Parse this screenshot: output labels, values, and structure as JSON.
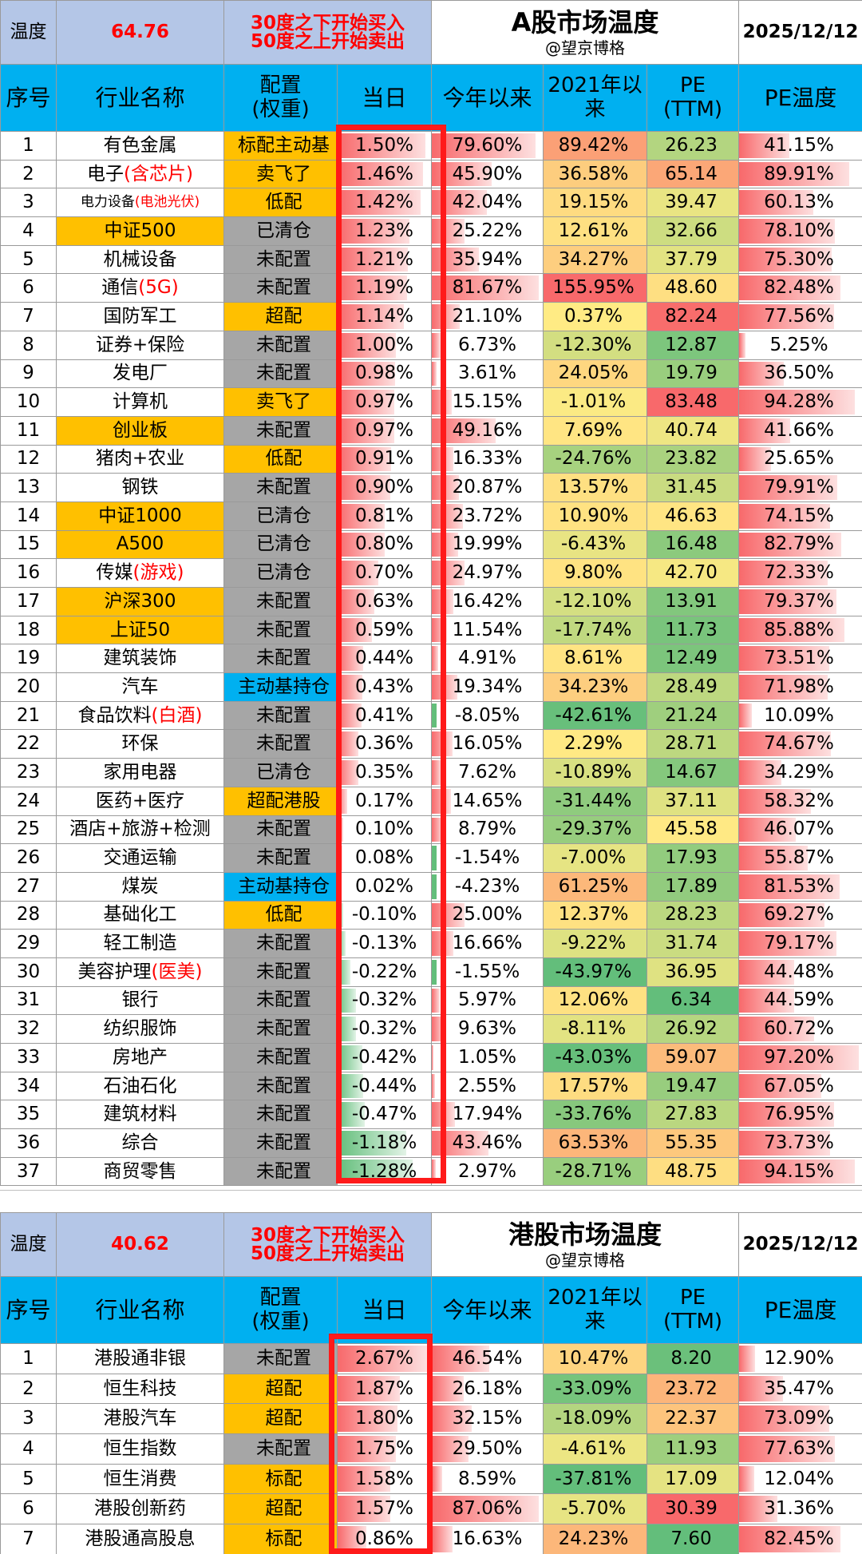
{
  "a_share": {
    "temp_label": "温度",
    "temp_value": "64.76",
    "rule_buy": "30度之下开始买入",
    "rule_sell": "50度之上开始卖出",
    "title": "A股市场温度",
    "subtitle": "@望京博格",
    "date": "2025/12/12",
    "columns": {
      "idx": "序号",
      "name": "行业名称",
      "config_l1": "配置",
      "config_l2": "(权重)",
      "day": "当日",
      "ytd": "今年以来",
      "since_l1": "2021年以",
      "since_l2": "来",
      "pe_l1": "PE",
      "pe_l2": "(TTM)",
      "pe_temp": "PE温度"
    },
    "rows": [
      {
        "idx": "1",
        "name": "有色金属",
        "cfg": "标配主动基",
        "day": "1.50%",
        "ytd": "79.60%",
        "since": "89.42%",
        "pe": "26.23",
        "pet": "41.15%"
      },
      {
        "idx": "2",
        "name": "电子",
        "name_red": "(含芯片)",
        "cfg": "卖飞了",
        "day": "1.46%",
        "ytd": "45.90%",
        "since": "36.58%",
        "pe": "65.14",
        "pet": "89.91%"
      },
      {
        "idx": "3",
        "name": "电力设备",
        "name_red": "(电池光伏)",
        "small": true,
        "cfg": "低配",
        "day": "1.42%",
        "ytd": "42.04%",
        "since": "19.15%",
        "pe": "39.47",
        "pet": "60.13%"
      },
      {
        "idx": "4",
        "name": "中证500",
        "cfg": "已清仓",
        "day": "1.23%",
        "ytd": "25.22%",
        "since": "12.61%",
        "pe": "32.66",
        "pet": "78.10%"
      },
      {
        "idx": "5",
        "name": "机械设备",
        "cfg": "未配置",
        "day": "1.21%",
        "ytd": "35.94%",
        "since": "34.27%",
        "pe": "37.79",
        "pet": "75.30%"
      },
      {
        "idx": "6",
        "name": "通信",
        "name_red": "(5G)",
        "cfg": "未配置",
        "day": "1.19%",
        "ytd": "81.67%",
        "since": "155.95%",
        "pe": "48.60",
        "pet": "82.48%"
      },
      {
        "idx": "7",
        "name": "国防军工",
        "cfg": "超配",
        "day": "1.14%",
        "ytd": "21.10%",
        "since": "0.37%",
        "pe": "82.24",
        "pet": "77.56%"
      },
      {
        "idx": "8",
        "name": "证券+保险",
        "cfg": "未配置",
        "day": "1.00%",
        "ytd": "6.73%",
        "since": "-12.30%",
        "pe": "12.87",
        "pet": "5.25%"
      },
      {
        "idx": "9",
        "name": "发电厂",
        "cfg": "未配置",
        "day": "0.98%",
        "ytd": "3.61%",
        "since": "24.05%",
        "pe": "19.79",
        "pet": "36.50%"
      },
      {
        "idx": "10",
        "name": "计算机",
        "cfg": "卖飞了",
        "day": "0.97%",
        "ytd": "15.15%",
        "since": "-1.01%",
        "pe": "83.48",
        "pet": "94.28%"
      },
      {
        "idx": "11",
        "name": "创业板",
        "cfg": "未配置",
        "day": "0.97%",
        "ytd": "49.16%",
        "since": "7.69%",
        "pe": "40.74",
        "pet": "41.66%"
      },
      {
        "idx": "12",
        "name": "猪肉+农业",
        "cfg": "低配",
        "day": "0.91%",
        "ytd": "16.33%",
        "since": "-24.76%",
        "pe": "23.82",
        "pet": "25.65%"
      },
      {
        "idx": "13",
        "name": "钢铁",
        "cfg": "未配置",
        "day": "0.90%",
        "ytd": "20.87%",
        "since": "13.57%",
        "pe": "31.45",
        "pet": "79.91%"
      },
      {
        "idx": "14",
        "name": "中证1000",
        "cfg": "已清仓",
        "day": "0.81%",
        "ytd": "23.72%",
        "since": "10.90%",
        "pe": "46.63",
        "pet": "74.15%"
      },
      {
        "idx": "15",
        "name": "A500",
        "cfg": "已清仓",
        "day": "0.80%",
        "ytd": "19.99%",
        "since": "-6.43%",
        "pe": "16.48",
        "pet": "82.79%"
      },
      {
        "idx": "16",
        "name": "传媒",
        "name_red": "(游戏)",
        "cfg": "已清仓",
        "day": "0.70%",
        "ytd": "24.97%",
        "since": "9.80%",
        "pe": "42.70",
        "pet": "72.33%"
      },
      {
        "idx": "17",
        "name": "沪深300",
        "cfg": "未配置",
        "day": "0.63%",
        "ytd": "16.42%",
        "since": "-12.10%",
        "pe": "13.91",
        "pet": "79.37%"
      },
      {
        "idx": "18",
        "name": "上证50",
        "cfg": "未配置",
        "day": "0.59%",
        "ytd": "11.54%",
        "since": "-17.74%",
        "pe": "11.73",
        "pet": "85.88%"
      },
      {
        "idx": "19",
        "name": "建筑装饰",
        "cfg": "未配置",
        "day": "0.44%",
        "ytd": "4.91%",
        "since": "8.61%",
        "pe": "12.49",
        "pet": "73.51%"
      },
      {
        "idx": "20",
        "name": "汽车",
        "cfg": "主动基持仓",
        "day": "0.43%",
        "ytd": "19.34%",
        "since": "34.23%",
        "pe": "28.49",
        "pet": "71.98%"
      },
      {
        "idx": "21",
        "name": "食品饮料",
        "name_red": "(白酒)",
        "cfg": "未配置",
        "day": "0.41%",
        "ytd": "-8.05%",
        "since": "-42.61%",
        "pe": "21.24",
        "pet": "10.09%"
      },
      {
        "idx": "22",
        "name": "环保",
        "cfg": "未配置",
        "day": "0.36%",
        "ytd": "16.05%",
        "since": "2.29%",
        "pe": "28.71",
        "pet": "74.67%"
      },
      {
        "idx": "23",
        "name": "家用电器",
        "cfg": "已清仓",
        "day": "0.35%",
        "ytd": "7.62%",
        "since": "-10.89%",
        "pe": "14.67",
        "pet": "34.29%"
      },
      {
        "idx": "24",
        "name": "医药+医疗",
        "cfg": "超配港股",
        "day": "0.17%",
        "ytd": "14.65%",
        "since": "-31.44%",
        "pe": "37.11",
        "pet": "58.32%"
      },
      {
        "idx": "25",
        "name": "酒店+旅游+检测",
        "cfg": "未配置",
        "day": "0.10%",
        "ytd": "8.79%",
        "since": "-29.37%",
        "pe": "45.58",
        "pet": "46.07%"
      },
      {
        "idx": "26",
        "name": "交通运输",
        "cfg": "未配置",
        "day": "0.08%",
        "ytd": "-1.54%",
        "since": "-7.00%",
        "pe": "17.93",
        "pet": "55.87%"
      },
      {
        "idx": "27",
        "name": "煤炭",
        "cfg": "主动基持仓",
        "day": "0.02%",
        "ytd": "-4.23%",
        "since": "61.25%",
        "pe": "17.89",
        "pet": "81.53%"
      },
      {
        "idx": "28",
        "name": "基础化工",
        "cfg": "低配",
        "day": "-0.10%",
        "ytd": "25.00%",
        "since": "12.37%",
        "pe": "28.23",
        "pet": "69.27%"
      },
      {
        "idx": "29",
        "name": "轻工制造",
        "cfg": "未配置",
        "day": "-0.13%",
        "ytd": "16.66%",
        "since": "-9.22%",
        "pe": "31.74",
        "pet": "79.17%"
      },
      {
        "idx": "30",
        "name": "美容护理",
        "name_red": "(医美)",
        "cfg": "未配置",
        "day": "-0.22%",
        "ytd": "-1.55%",
        "since": "-43.97%",
        "pe": "36.95",
        "pet": "44.48%"
      },
      {
        "idx": "31",
        "name": "银行",
        "cfg": "未配置",
        "day": "-0.32%",
        "ytd": "5.97%",
        "since": "12.06%",
        "pe": "6.34",
        "pet": "44.59%"
      },
      {
        "idx": "32",
        "name": "纺织服饰",
        "cfg": "未配置",
        "day": "-0.32%",
        "ytd": "9.63%",
        "since": "-8.11%",
        "pe": "26.92",
        "pet": "60.72%"
      },
      {
        "idx": "33",
        "name": "房地产",
        "cfg": "未配置",
        "day": "-0.42%",
        "ytd": "1.05%",
        "since": "-43.03%",
        "pe": "59.07",
        "pet": "97.20%"
      },
      {
        "idx": "34",
        "name": "石油石化",
        "cfg": "未配置",
        "day": "-0.44%",
        "ytd": "2.55%",
        "since": "17.57%",
        "pe": "19.47",
        "pet": "67.05%"
      },
      {
        "idx": "35",
        "name": "建筑材料",
        "cfg": "未配置",
        "day": "-0.47%",
        "ytd": "17.94%",
        "since": "-33.76%",
        "pe": "27.83",
        "pet": "76.95%"
      },
      {
        "idx": "36",
        "name": "综合",
        "cfg": "未配置",
        "day": "-1.18%",
        "ytd": "43.46%",
        "since": "63.53%",
        "pe": "55.35",
        "pet": "73.73%"
      },
      {
        "idx": "37",
        "name": "商贸零售",
        "cfg": "未配置",
        "day": "-1.28%",
        "ytd": "2.97%",
        "since": "-28.71%",
        "pe": "48.75",
        "pet": "94.15%"
      }
    ]
  },
  "hk_share": {
    "temp_label": "温度",
    "temp_value": "40.62",
    "rule_buy": "30度之下开始买入",
    "rule_sell": "50度之上开始卖出",
    "title": "港股市场温度",
    "subtitle": "@望京博格",
    "date": "2025/12/12",
    "columns": {
      "idx": "序号",
      "name": "行业名称",
      "config_l1": "配置",
      "config_l2": "(权重)",
      "day": "当日",
      "ytd": "今年以来",
      "since_l1": "2021年以",
      "since_l2": "来",
      "pe_l1": "PE",
      "pe_l2": "(TTM)",
      "pe_temp": "PE温度"
    },
    "rows": [
      {
        "idx": "1",
        "name": "港股通非银",
        "cfg": "未配置",
        "day": "2.67%",
        "ytd": "46.54%",
        "since": "10.47%",
        "pe": "8.20",
        "pet": "12.90%"
      },
      {
        "idx": "2",
        "name": "恒生科技",
        "cfg": "超配",
        "day": "1.87%",
        "ytd": "26.18%",
        "since": "-33.09%",
        "pe": "23.72",
        "pet": "35.47%"
      },
      {
        "idx": "3",
        "name": "港股汽车",
        "cfg": "超配",
        "day": "1.80%",
        "ytd": "32.15%",
        "since": "-18.09%",
        "pe": "22.37",
        "pet": "73.09%"
      },
      {
        "idx": "4",
        "name": "恒生指数",
        "cfg": "未配置",
        "day": "1.75%",
        "ytd": "29.50%",
        "since": "-4.61%",
        "pe": "11.93",
        "pet": "77.63%"
      },
      {
        "idx": "5",
        "name": "恒生消费",
        "cfg": "标配",
        "day": "1.58%",
        "ytd": "8.59%",
        "since": "-37.81%",
        "pe": "17.09",
        "pet": "12.04%"
      },
      {
        "idx": "6",
        "name": "港股创新药",
        "cfg": "超配",
        "day": "1.57%",
        "ytd": "87.06%",
        "since": "-5.70%",
        "pe": "30.39",
        "pet": "31.36%"
      },
      {
        "idx": "7",
        "name": "港股通高股息",
        "cfg": "标配",
        "day": "0.86%",
        "ytd": "16.63%",
        "since": "24.23%",
        "pe": "7.60",
        "pet": "82.45%"
      }
    ]
  },
  "colors": {
    "header_blue": "#00b0f0",
    "label_blue": "#b4c6e7",
    "highlight_orange": "#ffc000",
    "gray": "#a6a6a6",
    "red": "#ff0000",
    "bar_red": "#f8696b",
    "bar_green": "#63be7b"
  }
}
